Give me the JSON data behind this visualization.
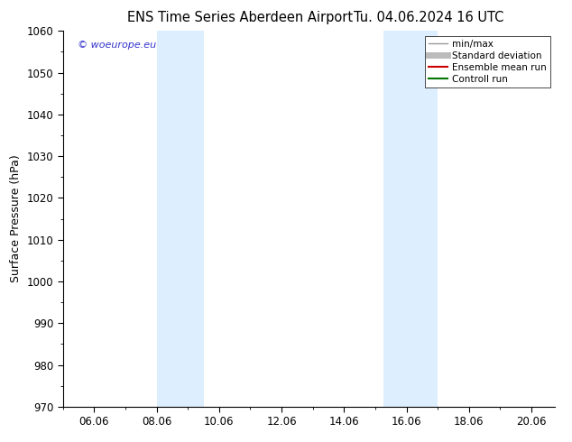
{
  "title_left": "ENS Time Series Aberdeen Airport",
  "title_right": "Tu. 04.06.2024 16 UTC",
  "ylabel": "Surface Pressure (hPa)",
  "ylim": [
    970,
    1060
  ],
  "yticks": [
    970,
    980,
    990,
    1000,
    1010,
    1020,
    1030,
    1040,
    1050,
    1060
  ],
  "xtick_labels": [
    "06.06",
    "08.06",
    "10.06",
    "12.06",
    "14.06",
    "16.06",
    "18.06",
    "20.06"
  ],
  "xtick_positions": [
    1,
    3,
    5,
    7,
    9,
    11,
    13,
    15
  ],
  "xlim": [
    0,
    15.75
  ],
  "shaded_bands": [
    {
      "start": 3.0,
      "end": 4.5
    },
    {
      "start": 10.25,
      "end": 12.0
    }
  ],
  "shade_color": "#ddeeff",
  "watermark_text": "© woeurope.eu",
  "watermark_color": "#3333cc",
  "legend_entries": [
    {
      "label": "min/max",
      "color": "#999999",
      "lw": 1.0,
      "type": "line"
    },
    {
      "label": "Standard deviation",
      "color": "#bbbbbb",
      "lw": 5,
      "type": "line"
    },
    {
      "label": "Ensemble mean run",
      "color": "#cc0000",
      "lw": 1.5,
      "type": "line"
    },
    {
      "label": "Controll run",
      "color": "#007700",
      "lw": 1.5,
      "type": "line"
    }
  ],
  "bg_color": "#ffffff",
  "title_fontsize": 10.5,
  "tick_fontsize": 8.5,
  "ylabel_fontsize": 9,
  "legend_fontsize": 7.5
}
